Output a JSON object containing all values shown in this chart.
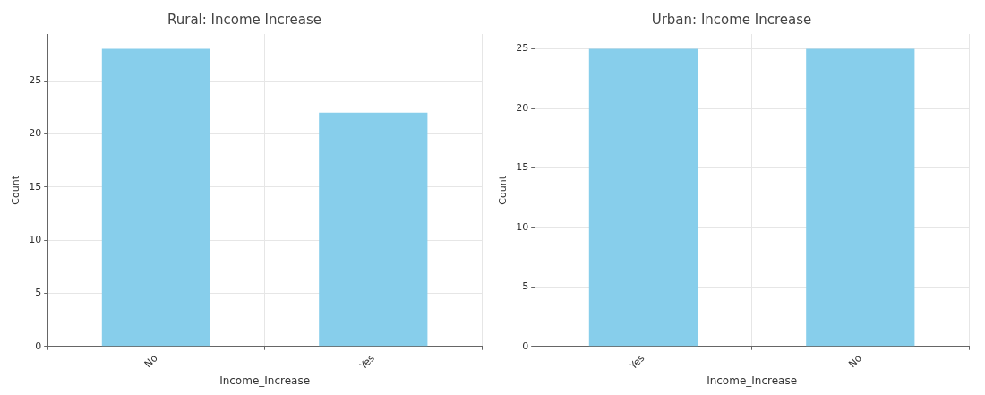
{
  "chart_data": [
    {
      "type": "bar",
      "title": "Rural: Income Increase",
      "xlabel": "Income_Increase",
      "ylabel": "Count",
      "categories": [
        "No",
        "Yes"
      ],
      "values": [
        28,
        22
      ],
      "color": "#87ceeb",
      "ylim": [
        0,
        29.4
      ],
      "yticks": [
        0,
        5,
        10,
        15,
        20,
        25
      ],
      "grid": true
    },
    {
      "type": "bar",
      "title": "Urban: Income Increase",
      "xlabel": "Income_Increase",
      "ylabel": "Count",
      "categories": [
        "Yes",
        "No"
      ],
      "values": [
        25,
        25
      ],
      "color": "#87ceeb",
      "ylim": [
        0,
        26.25
      ],
      "yticks": [
        0,
        5,
        10,
        15,
        20,
        25
      ],
      "grid": true
    }
  ]
}
